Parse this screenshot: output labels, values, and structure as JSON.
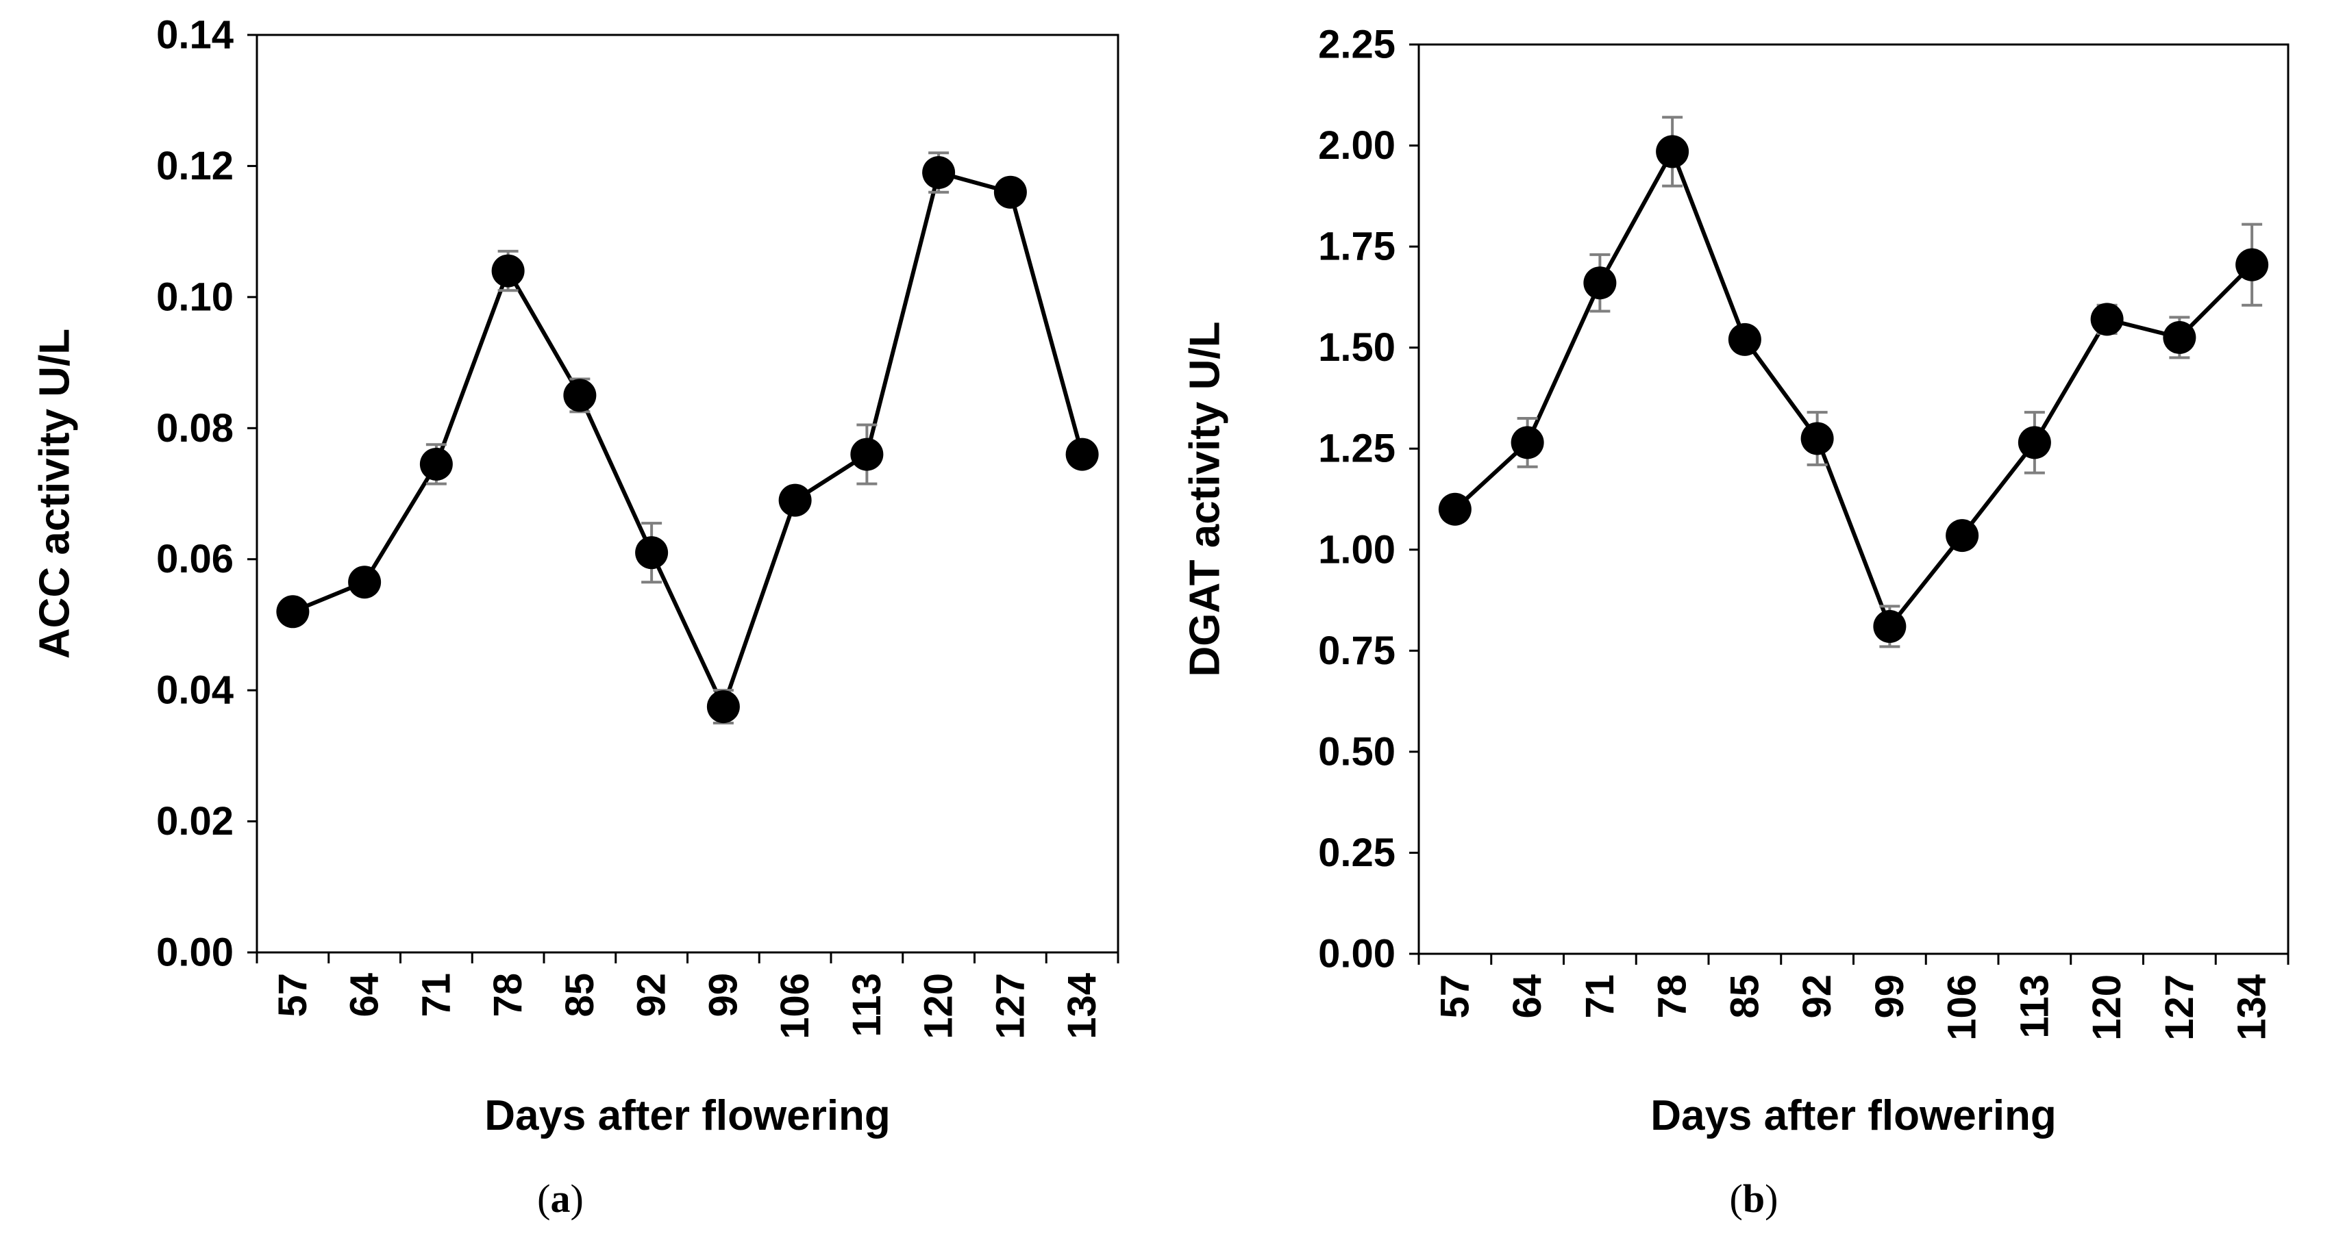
{
  "chart_data": [
    {
      "type": "line",
      "panel_label": "a",
      "xlabel": "Days after flowering",
      "ylabel": "ACC activity U/L",
      "categories": [
        "57",
        "64",
        "71",
        "78",
        "85",
        "92",
        "99",
        "106",
        "113",
        "120",
        "127",
        "134"
      ],
      "series": [
        {
          "name": "ACC activity",
          "values": [
            0.052,
            0.0565,
            0.0745,
            0.104,
            0.085,
            0.061,
            0.0375,
            0.069,
            0.076,
            0.119,
            0.116,
            0.076
          ],
          "errors": [
            0.001,
            0.001,
            0.003,
            0.003,
            0.0025,
            0.0045,
            0.0025,
            0.0015,
            0.0045,
            0.003,
            0.001,
            0.001
          ]
        }
      ],
      "ylim": [
        0,
        0.14
      ],
      "yticks": [
        "0.00",
        "0.02",
        "0.04",
        "0.06",
        "0.08",
        "0.10",
        "0.12",
        "0.14"
      ],
      "grid": false,
      "legend": "none"
    },
    {
      "type": "line",
      "panel_label": "b",
      "xlabel": "Days after flowering",
      "ylabel": "DGAT activity U/L",
      "categories": [
        "57",
        "64",
        "71",
        "78",
        "85",
        "92",
        "99",
        "106",
        "113",
        "120",
        "127",
        "134"
      ],
      "series": [
        {
          "name": "DGAT activity",
          "values": [
            1.1,
            1.265,
            1.66,
            1.985,
            1.52,
            1.275,
            0.81,
            1.035,
            1.265,
            1.57,
            1.525,
            1.705
          ],
          "errors": [
            0.02,
            0.06,
            0.07,
            0.085,
            0.02,
            0.065,
            0.05,
            0.02,
            0.075,
            0.035,
            0.05,
            0.1
          ]
        }
      ],
      "ylim": [
        0,
        2.25
      ],
      "yticks": [
        "0.00",
        "0.25",
        "0.50",
        "0.75",
        "1.00",
        "1.25",
        "1.50",
        "1.75",
        "2.00",
        "2.25"
      ],
      "grid": false,
      "legend": "none"
    }
  ]
}
